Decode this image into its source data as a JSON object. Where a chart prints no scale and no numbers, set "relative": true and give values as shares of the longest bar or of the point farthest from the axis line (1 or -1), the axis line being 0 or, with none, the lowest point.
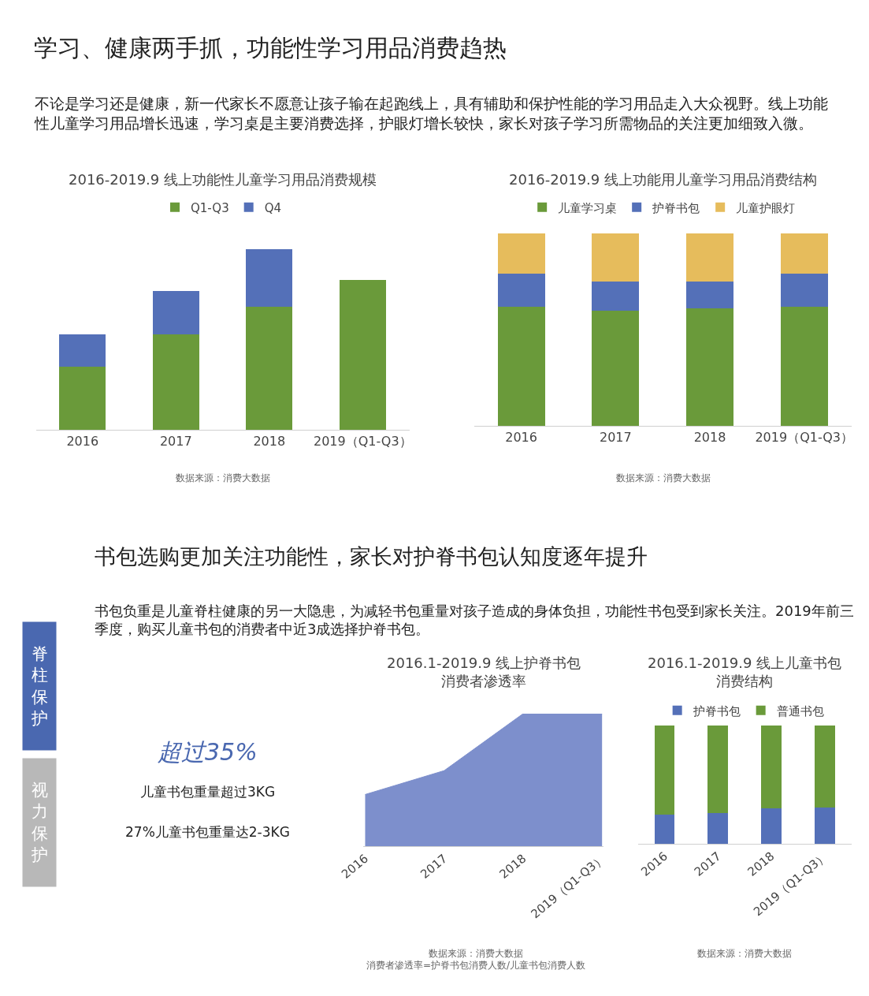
{
  "chart_data": [
    {
      "type": "other",
      "title": "学习、健康两手抓，功能性学习用品消费趋热",
      "subtitle": "不论是学习还是健康，新一代家长不愿意让孩子输在起跑线上，具有辅助和保护性能的学习用品走入大众视野。线上功能性儿童学习用品增长迅速，学习桌是主要消费选择，护眼灯增长较快，家长对孩子学习所需物品的关注更加细致入微。"
    },
    {
      "type": "bar",
      "title": "2016-2019.9 线上功能性儿童学习用品消费规模",
      "categories": [
        "2016",
        "2017",
        "2018",
        "2019（Q1-Q3）"
      ],
      "stacked": true,
      "relative": true,
      "legend": "top",
      "series": [
        {
          "name": "Q1-Q3",
          "color": "#6a9a3a",
          "values": [
            0.35,
            0.53,
            0.68,
            0.83
          ]
        },
        {
          "name": "Q4",
          "color": "#5470b8",
          "values": [
            0.18,
            0.24,
            0.32,
            null
          ]
        }
      ],
      "annotations": [
        "数据来源：消费大数据"
      ]
    },
    {
      "type": "bar",
      "title": "2016-2019.9 线上功能用儿童学习用品消费结构",
      "categories": [
        "2016",
        "2017",
        "2018",
        "2019（Q1-Q3）"
      ],
      "stacked": true,
      "relative": true,
      "legend": "top",
      "series": [
        {
          "name": "儿童学习桌",
          "color": "#6a9a3a",
          "values": [
            0.62,
            0.6,
            0.61,
            0.62
          ]
        },
        {
          "name": "护脊书包",
          "color": "#5470b8",
          "values": [
            0.17,
            0.15,
            0.14,
            0.17
          ]
        },
        {
          "name": "儿童护眼灯",
          "color": "#e6bc5c",
          "values": [
            0.21,
            0.25,
            0.25,
            0.21
          ]
        }
      ],
      "annotations": [
        "数据来源：消费大数据"
      ]
    },
    {
      "type": "other",
      "title": "书包选购更加关注功能性，家长对护脊书包认知度逐年提升",
      "subtitle": "书包负重是儿童脊柱健康的另一大隐患，为减轻书包重量对孩子造成的身体负担，功能性书包受到家长关注。2019年前三季度，购买儿童书包的消费者中近3成选择护脊书包。",
      "annotations": [
        "脊柱保护",
        "视力保护",
        "超过35%",
        "儿童书包重量超过3KG",
        "27%儿童书包重量达2-3KG"
      ]
    },
    {
      "type": "area",
      "title": "2016.1-2019.9 线上护脊书包消费者渗透率",
      "categories": [
        "2016",
        "2017",
        "2018",
        "2019（Q1-Q3）"
      ],
      "relative": true,
      "color": "#7d8fcc",
      "values": [
        0.39,
        0.57,
        1.0,
        1.0
      ],
      "annotations": [
        "数据来源：消费大数据",
        "消费者渗透率=护脊书包消费人数/儿童书包消费人数"
      ]
    },
    {
      "type": "bar",
      "title": "2016.1-2019.9 线上儿童书包消费结构",
      "categories": [
        "2016",
        "2017",
        "2018",
        "2019（Q1-Q3）"
      ],
      "stacked": true,
      "relative": true,
      "legend": "top",
      "series": [
        {
          "name": "护脊书包",
          "color": "#5470b8",
          "values": [
            0.25,
            0.26,
            0.3,
            0.31
          ]
        },
        {
          "name": "普通书包",
          "color": "#6a9a3a",
          "values": [
            0.75,
            0.74,
            0.7,
            0.69
          ]
        }
      ],
      "annotations": [
        "数据来源：消费大数据"
      ]
    }
  ]
}
